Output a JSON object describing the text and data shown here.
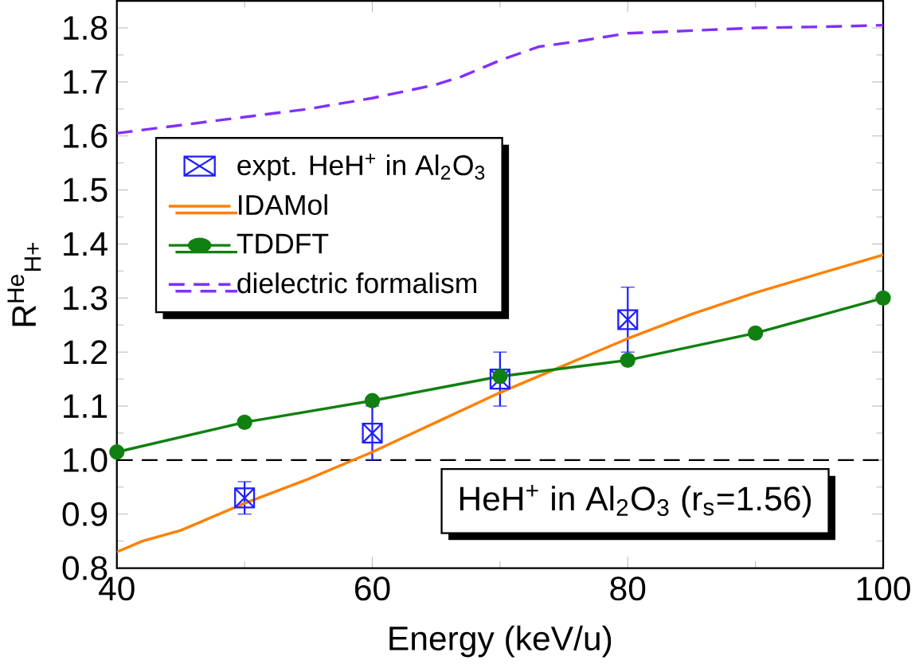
{
  "chart_data": {
    "type": "line",
    "xlabel": "Energy (keV/u)",
    "ylabel": "R$^{He}$$_{H+}$",
    "xlim": [
      40,
      100
    ],
    "ylim": [
      0.8,
      1.85
    ],
    "xticks": [
      40,
      60,
      80,
      100
    ],
    "yticks": [
      0.8,
      0.9,
      {
        "value": 1.0,
        "label": "1.0"
      },
      1.1,
      1.2,
      1.3,
      1.4,
      1.5,
      1.6,
      1.7,
      1.8
    ],
    "legend": "top left",
    "grid": false,
    "series": [
      {
        "name": "expt. HeH$^{+}$ in Al$_{2}$O$_{3}$",
        "type": "scatter",
        "color": "#1f1fff",
        "marker": "cross",
        "x": [
          50,
          60,
          70,
          80
        ],
        "values": [
          0.93,
          1.05,
          1.15,
          1.26
        ],
        "errors": [
          0.03,
          0.05,
          0.05,
          0.06
        ]
      },
      {
        "name": "IDAMol",
        "color": "#ff8000",
        "marker": "none",
        "line_style": "solid",
        "x": [
          40,
          42,
          45,
          50,
          55,
          60,
          65,
          70,
          75,
          80,
          85,
          90,
          95,
          100
        ],
        "values": [
          0.83,
          0.85,
          0.87,
          0.92,
          0.965,
          1.015,
          1.07,
          1.125,
          1.175,
          1.225,
          1.27,
          1.31,
          1.345,
          1.38
        ]
      },
      {
        "name": "TDDFT",
        "color": "#108010",
        "marker": "circle",
        "line_style": "solid",
        "x": [
          40,
          50,
          60,
          70,
          80,
          90,
          100
        ],
        "values": [
          1.015,
          1.07,
          1.11,
          1.155,
          1.185,
          1.235,
          1.3
        ]
      },
      {
        "name": "dielectric formalism",
        "color": "#8030ff",
        "marker": "none",
        "line_style": "dashed",
        "x": [
          40,
          45,
          50,
          55,
          60,
          65,
          67,
          70,
          73,
          76,
          80,
          85,
          90,
          95,
          100
        ],
        "values": [
          1.605,
          1.62,
          1.635,
          1.65,
          1.67,
          1.695,
          1.71,
          1.74,
          1.765,
          1.775,
          1.79,
          1.795,
          1.8,
          1.802,
          1.805
        ]
      }
    ],
    "ref_lines": [
      {
        "axis": "y",
        "value": 1.0,
        "color": "#000000",
        "line_style": "dashed"
      }
    ],
    "annotations": [
      "HeH$^{+}$ in Al$_{2}$O$_{3}$ (r$_{s}$=1.56)"
    ]
  }
}
